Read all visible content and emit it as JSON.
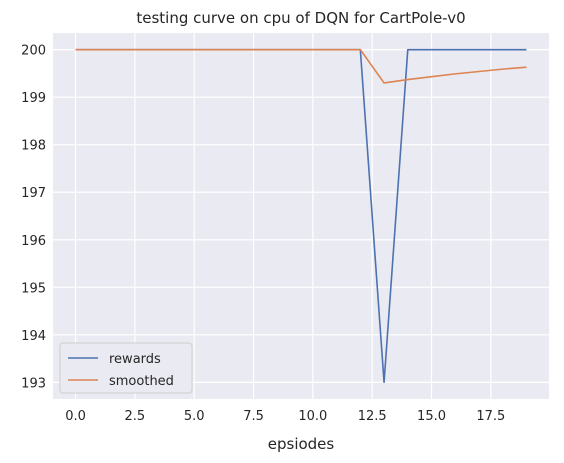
{
  "chart_data": {
    "type": "line",
    "title": "testing curve on cpu of DQN for CartPole-v0",
    "xlabel": "epsiodes",
    "ylabel": "",
    "xlim": [
      -0.95,
      19.95
    ],
    "ylim": [
      192.65,
      200.35
    ],
    "xticks": [
      "0.0",
      "2.5",
      "5.0",
      "7.5",
      "10.0",
      "12.5",
      "15.0",
      "17.5"
    ],
    "yticks": [
      "193",
      "194",
      "195",
      "196",
      "197",
      "198",
      "199",
      "200"
    ],
    "grid": true,
    "legend_position": "lower-left",
    "background": "#eaeaf2",
    "x": [
      0,
      1,
      2,
      3,
      4,
      5,
      6,
      7,
      8,
      9,
      10,
      11,
      12,
      13,
      14,
      15,
      16,
      17,
      18,
      19
    ],
    "series": [
      {
        "name": "rewards",
        "color": "#4c72b0",
        "values": [
          200,
          200,
          200,
          200,
          200,
          200,
          200,
          200,
          200,
          200,
          200,
          200,
          200,
          193,
          200,
          200,
          200,
          200,
          200,
          200
        ]
      },
      {
        "name": "smoothed",
        "color": "#dd8452",
        "values": [
          200,
          200,
          200,
          200,
          200,
          200,
          200,
          200,
          200,
          200,
          200,
          200,
          200,
          199.3,
          199.37,
          199.43,
          199.49,
          199.54,
          199.59,
          199.63
        ]
      }
    ]
  }
}
